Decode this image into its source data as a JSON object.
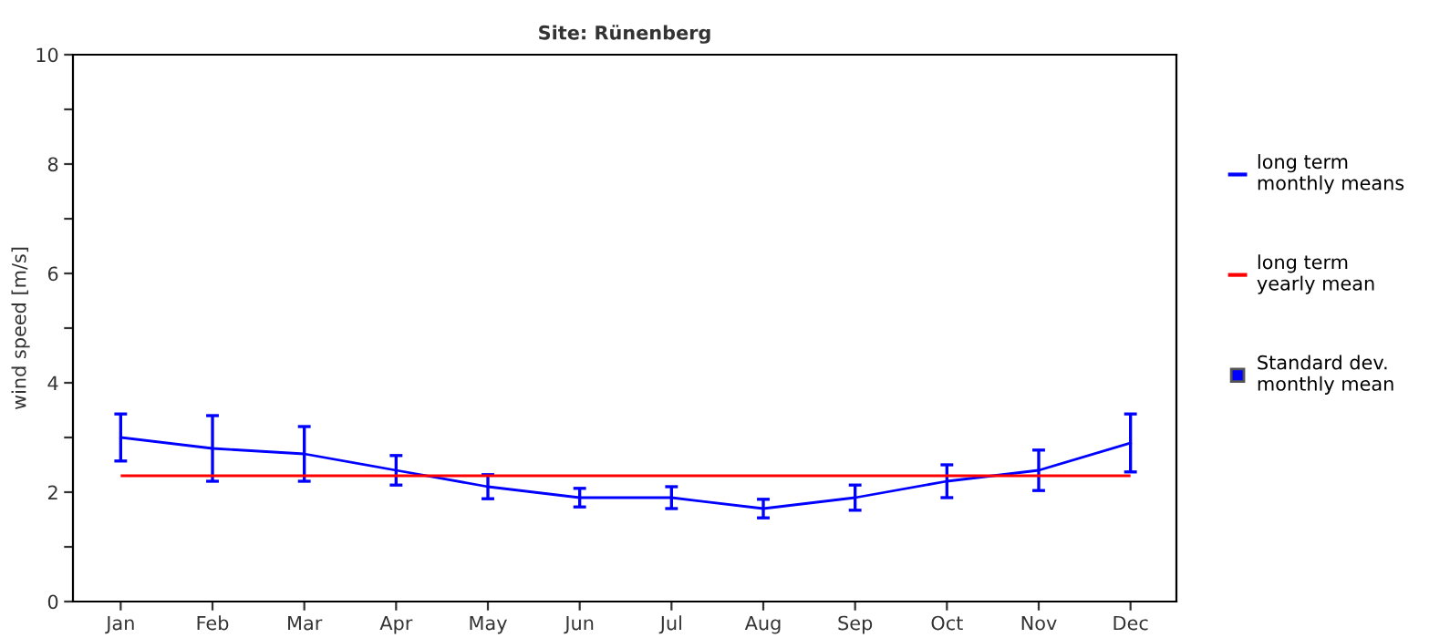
{
  "chart_data": {
    "type": "line",
    "title": "Site: Rünenberg",
    "ylabel": "wind speed [m/s]",
    "categories": [
      "Jan",
      "Feb",
      "Mar",
      "Apr",
      "May",
      "Jun",
      "Jul",
      "Aug",
      "Sep",
      "Oct",
      "Nov",
      "Dec"
    ],
    "series": [
      {
        "name": "long term\nmonthly means",
        "color": "#0000ff",
        "values": [
          3.0,
          2.8,
          2.7,
          2.4,
          2.1,
          1.9,
          1.9,
          1.7,
          1.9,
          2.2,
          2.4,
          2.9
        ],
        "errors": [
          0.43,
          0.6,
          0.5,
          0.27,
          0.22,
          0.17,
          0.2,
          0.17,
          0.23,
          0.3,
          0.37,
          0.53
        ]
      }
    ],
    "ref_lines": [
      {
        "axis": "y",
        "value": 2.3,
        "label": "long term\nyearly mean",
        "color": "#ff0000"
      }
    ],
    "annotations": [
      "Standard dev.\nmonthly mean"
    ],
    "ylim": [
      0,
      10
    ],
    "yticks": [
      0,
      {
        "value": 1,
        "label": null
      },
      2,
      {
        "value": 3,
        "label": null
      },
      4,
      {
        "value": 5,
        "label": null
      },
      6,
      {
        "value": 7,
        "label": null
      },
      8,
      {
        "value": 9,
        "label": null
      },
      10
    ],
    "grid": false,
    "legend": "right",
    "marker": "none",
    "line_style": "solid"
  }
}
